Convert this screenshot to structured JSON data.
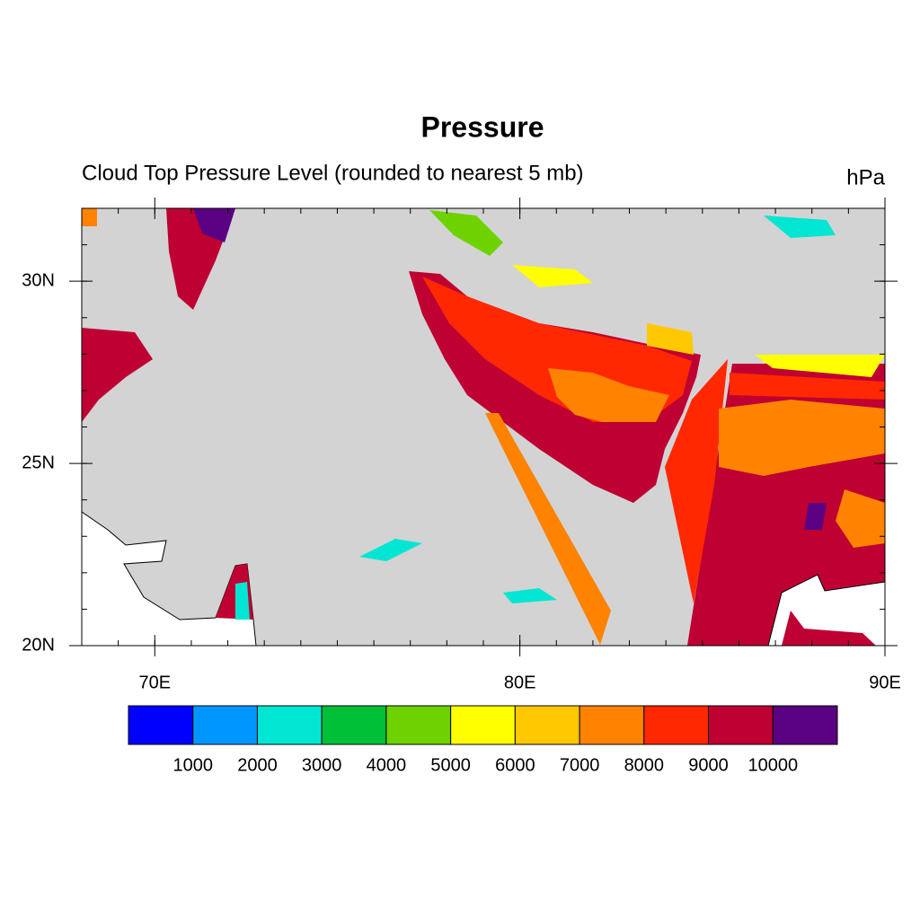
{
  "chart_data": {
    "type": "map",
    "title": "Pressure",
    "subtitle": "Cloud Top Pressure Level (rounded to nearest 5 mb)",
    "units": "hPa",
    "background_color": "#d3d3d3",
    "land_color": "#ffffff",
    "xlim": [
      68,
      90
    ],
    "ylim": [
      20,
      32
    ],
    "xticks": [
      {
        "value": 70,
        "label": "70E"
      },
      {
        "value": 80,
        "label": "80E"
      },
      {
        "value": 90,
        "label": "90E"
      }
    ],
    "yticks": [
      {
        "value": 20,
        "label": "20N"
      },
      {
        "value": 25,
        "label": "25N"
      },
      {
        "value": 30,
        "label": "30N"
      }
    ],
    "x_minor_ticks": [
      68,
      69,
      70,
      71,
      72,
      73,
      74,
      75,
      76,
      77,
      78,
      79,
      80,
      81,
      82,
      83,
      84,
      85,
      86,
      87,
      88,
      89,
      90
    ],
    "y_minor_ticks": [
      20,
      21,
      22,
      23,
      24,
      25,
      26,
      27,
      28,
      29,
      30,
      31,
      32
    ],
    "colorbar": {
      "levels": [
        1000,
        2000,
        3000,
        4000,
        5000,
        6000,
        7000,
        8000,
        9000,
        10000
      ],
      "colors": [
        "#0000ff",
        "#0096ff",
        "#00e6d2",
        "#00c038",
        "#6ed200",
        "#ffff00",
        "#ffc800",
        "#ff8200",
        "#ff2800",
        "#be0032",
        "#5a0082"
      ]
    }
  }
}
